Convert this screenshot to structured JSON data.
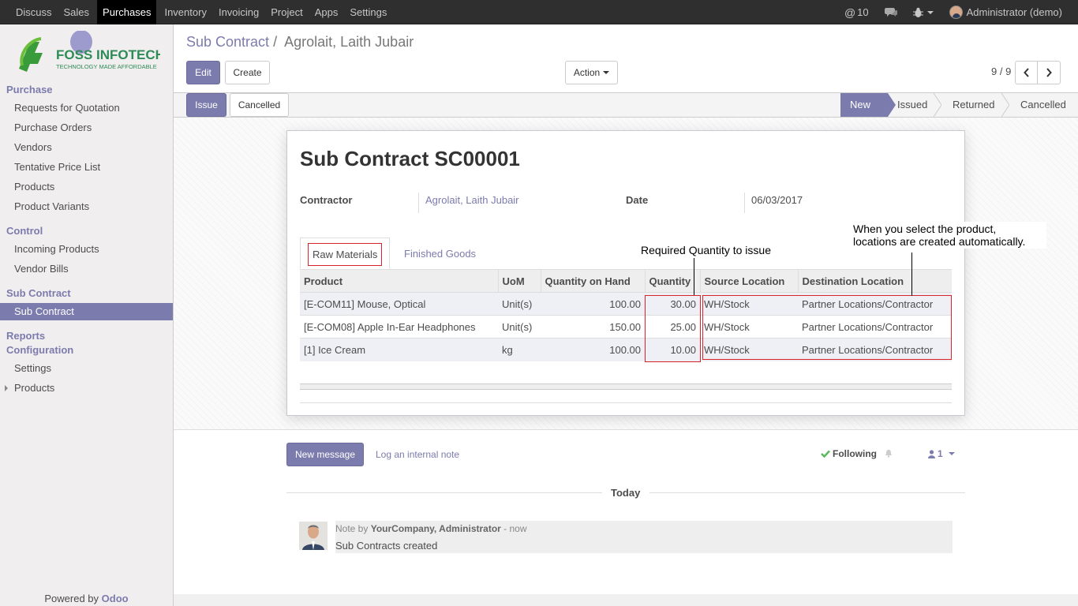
{
  "topbar": {
    "menu": [
      "Discuss",
      "Sales",
      "Purchases",
      "Inventory",
      "Invoicing",
      "Project",
      "Apps",
      "Settings"
    ],
    "active": "Purchases",
    "notifications": "10",
    "user": "Administrator (demo)"
  },
  "sidebar": {
    "logo_text": "FOSS INFOTECH",
    "logo_tagline": "TECHNOLOGY MADE AFFORDABLE",
    "sec_purchase": "Purchase",
    "purchase_items": [
      "Requests for Quotation",
      "Purchase Orders",
      "Vendors",
      "Tentative Price List",
      "Products",
      "Product Variants"
    ],
    "sec_control": "Control",
    "control_items": [
      "Incoming Products",
      "Vendor Bills"
    ],
    "sec_subcontract": "Sub Contract",
    "subcontract_item": "Sub Contract",
    "sec_reports": "Reports",
    "sec_configuration": "Configuration",
    "config_items": [
      "Settings",
      "Products"
    ],
    "powered_by": "Powered by",
    "powered_brand": "Odoo"
  },
  "breadcrumb": {
    "parent": "Sub Contract",
    "sep": "/",
    "current": "Agrolait, Laith Jubair"
  },
  "buttons": {
    "edit": "Edit",
    "create": "Create",
    "action": "Action",
    "issue": "Issue",
    "cancelled": "Cancelled"
  },
  "pager": {
    "value": "9 / 9"
  },
  "statusbar": [
    "New",
    "Issued",
    "Returned",
    "Cancelled"
  ],
  "status_current": "New",
  "form": {
    "title": "Sub Contract SC00001",
    "contractor_label": "Contractor",
    "contractor_value": "Agrolait, Laith Jubair",
    "date_label": "Date",
    "date_value": "06/03/2017",
    "tabs": [
      "Raw Materials",
      "Finished Goods"
    ],
    "columns": [
      "Product",
      "UoM",
      "Quantity on Hand",
      "Quantity",
      "Source Location",
      "Destination Location"
    ],
    "rows": [
      [
        "[E-COM11] Mouse, Optical",
        "Unit(s)",
        "100.00",
        "30.00",
        "WH/Stock",
        "Partner Locations/Contractor"
      ],
      [
        "[E-COM08] Apple In-Ear Headphones",
        "Unit(s)",
        "150.00",
        "25.00",
        "WH/Stock",
        "Partner Locations/Contractor"
      ],
      [
        "[1] Ice Cream",
        "kg",
        "100.00",
        "10.00",
        "WH/Stock",
        "Partner Locations/Contractor"
      ]
    ]
  },
  "annotations": {
    "quantity_note": "Required Quantity to issue",
    "location_note_1": "When you select the product,",
    "location_note_2": "locations are created automatically."
  },
  "chatter": {
    "new_message": "New message",
    "log_note": "Log an internal note",
    "following": "Following",
    "followers": "1",
    "today": "Today",
    "note_prefix": "Note by",
    "note_author": "YourCompany, Administrator",
    "note_time": "- now",
    "note_body": "Sub Contracts created"
  },
  "colors": {
    "brand": "#7c7bad",
    "navbar": "#2f2f2f",
    "highlight": "#d9232b",
    "follow_check": "#5cb85c"
  }
}
